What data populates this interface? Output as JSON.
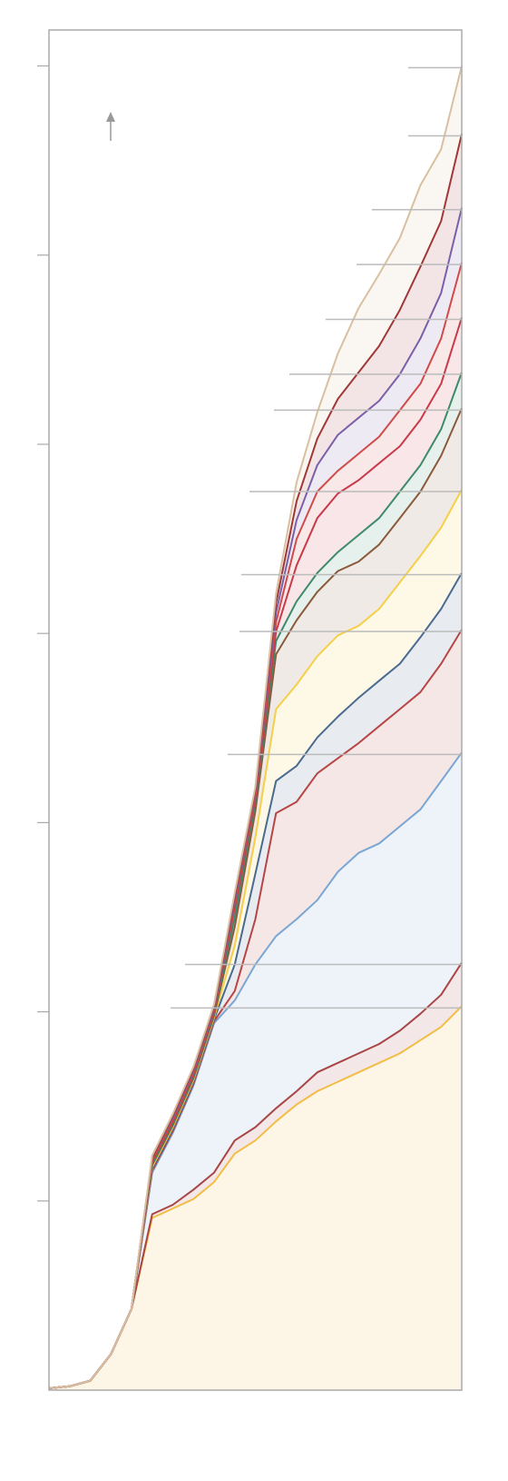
{
  "chart_data": {
    "type": "area",
    "stacked": true,
    "x": [
      0,
      5,
      10,
      15,
      20,
      25,
      30,
      35,
      40,
      45,
      50,
      55,
      60,
      65,
      70,
      75,
      80,
      85,
      90,
      95,
      100
    ],
    "xlim": [
      0,
      100
    ],
    "ylim": [
      0,
      719
    ],
    "yticks": [
      100,
      200,
      300,
      400,
      500,
      600,
      700
    ],
    "series": [
      {
        "color": "#f2bd45",
        "values": [
          1,
          2,
          5,
          19,
          43,
          91,
          96,
          101,
          110,
          125,
          132,
          142,
          151,
          158,
          163,
          168,
          173,
          178,
          185,
          192,
          203
        ]
      },
      {
        "color": "#a94545",
        "values": [
          0,
          0,
          0,
          0,
          0,
          2,
          2,
          5,
          5,
          7,
          7,
          7,
          7,
          10,
          10,
          10,
          10,
          12,
          14,
          17,
          23
        ]
      },
      {
        "color": "#7aa6d4",
        "values": [
          0,
          0,
          0,
          0,
          0,
          22,
          38,
          55,
          79,
          74,
          86,
          91,
          91,
          91,
          101,
          106,
          106,
          108,
          108,
          113,
          111
        ]
      },
      {
        "color": "#b84545",
        "values": [
          0,
          0,
          0,
          0,
          0,
          1,
          1,
          1,
          1,
          5,
          24,
          65,
          62,
          67,
          60,
          58,
          62,
          62,
          62,
          62,
          65
        ]
      },
      {
        "color": "#4a6a90",
        "values": [
          0,
          0,
          0,
          0,
          0,
          1,
          1,
          1,
          1,
          14,
          24,
          17,
          19,
          19,
          22,
          24,
          24,
          24,
          29,
          29,
          30
        ]
      },
      {
        "color": "#f5cf48",
        "values": [
          0,
          0,
          0,
          0,
          0,
          1,
          1,
          1,
          1,
          10,
          19,
          38,
          43,
          43,
          43,
          38,
          38,
          43,
          43,
          43,
          44
        ]
      },
      {
        "color": "#8a5a3a",
        "values": [
          0,
          0,
          0,
          0,
          0,
          1,
          1,
          1,
          1,
          10,
          14,
          29,
          34,
          34,
          34,
          34,
          34,
          34,
          34,
          38,
          43
        ]
      },
      {
        "color": "#3e8a6a",
        "values": [
          0,
          0,
          0,
          0,
          0,
          1,
          1,
          1,
          1,
          5,
          5,
          7,
          10,
          10,
          10,
          14,
          14,
          14,
          14,
          14,
          19
        ]
      },
      {
        "color": "#c83a4a",
        "values": [
          0,
          0,
          0,
          0,
          0,
          1,
          1,
          1,
          1,
          5,
          2,
          5,
          19,
          29,
          31,
          29,
          29,
          24,
          24,
          24,
          29
        ]
      },
      {
        "color": "#d04a4a",
        "values": [
          0,
          0,
          0,
          0,
          0,
          1,
          1,
          1,
          1,
          2,
          2,
          5,
          14,
          14,
          12,
          14,
          14,
          19,
          19,
          24,
          29
        ]
      },
      {
        "color": "#7a60a8",
        "values": [
          0,
          0,
          0,
          0,
          0,
          1,
          1,
          1,
          1,
          2,
          2,
          5,
          10,
          14,
          19,
          19,
          19,
          19,
          24,
          24,
          29
        ]
      },
      {
        "color": "#a03838",
        "values": [
          0,
          0,
          0,
          0,
          0,
          0,
          1,
          1,
          1,
          2,
          1,
          5,
          10,
          14,
          19,
          24,
          29,
          34,
          38,
          38,
          39
        ]
      },
      {
        "color": "#d8c0a0",
        "values": [
          0,
          0,
          0,
          0,
          0,
          1,
          1,
          1,
          1,
          2,
          1,
          5,
          10,
          14,
          24,
          34,
          38,
          38,
          43,
          38,
          36
        ]
      }
    ]
  }
}
